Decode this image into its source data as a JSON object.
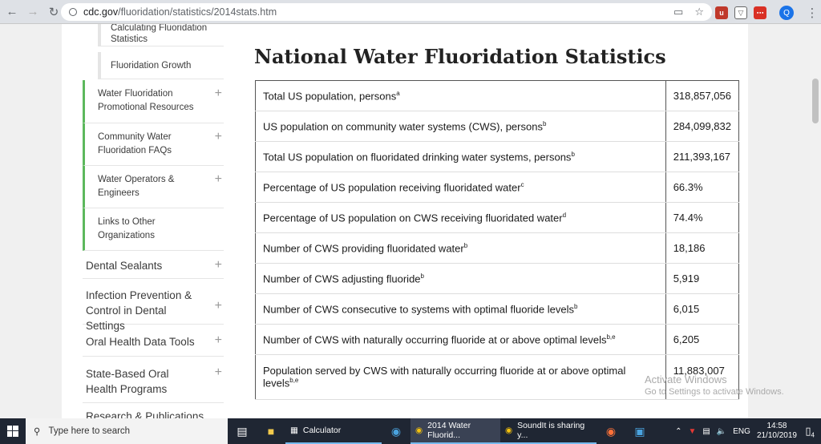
{
  "browser": {
    "url_domain": "cdc.gov",
    "url_path": "/fluoridation/statistics/2014stats.htm"
  },
  "sidebar": {
    "sub_items": [
      {
        "label": "Calculating Fluoridation Statistics"
      },
      {
        "label": "Fluoridation Growth"
      }
    ],
    "group_items": [
      {
        "label": "Water Fluoridation Promotional Resources"
      },
      {
        "label": "Community Water Fluoridation FAQs"
      },
      {
        "label": "Water Operators & Engineers"
      },
      {
        "label": "Links to Other Organizations"
      }
    ],
    "items": [
      {
        "label": "Dental Sealants"
      },
      {
        "label": "Infection Prevention & Control in Dental Settings"
      },
      {
        "label": "Oral Health Data Tools"
      },
      {
        "label": "State-Based Oral Health Programs"
      },
      {
        "label": "Research & Publications"
      }
    ]
  },
  "main": {
    "title": "National Water Fluoridation Statistics",
    "rows": [
      {
        "label": "Total US population, persons",
        "sup": "a",
        "value": "318,857,056"
      },
      {
        "label": "US population on community water systems (CWS), persons",
        "sup": "b",
        "value": "284,099,832"
      },
      {
        "label": "Total US population on fluoridated drinking water systems, persons",
        "sup": "b",
        "value": "211,393,167"
      },
      {
        "label": "Percentage of US population receiving fluoridated water",
        "sup": "c",
        "value": "66.3%"
      },
      {
        "label": "Percentage of US population on CWS receiving fluoridated water",
        "sup": "d",
        "value": "74.4%"
      },
      {
        "label": "Number of CWS providing fluoridated water",
        "sup": "b",
        "value": "18,186"
      },
      {
        "label": "Number of CWS adjusting fluoride",
        "sup": "b",
        "value": "5,919"
      },
      {
        "label": "Number of CWS consecutive to systems with optimal fluoride levels",
        "sup": "b",
        "value": "6,015"
      },
      {
        "label": "Number of CWS with naturally occurring fluoride at or above optimal levels",
        "sup": "b,e",
        "value": "6,205"
      },
      {
        "label": "Population served by CWS with naturally occurring fluoride at or above optimal levels",
        "sup": "b,e",
        "value": "11,883,007"
      }
    ]
  },
  "watermark": {
    "line1": "Activate Windows",
    "line2": "Go to Settings to activate Windows."
  },
  "taskbar": {
    "search_placeholder": "Type here to search",
    "apps": [
      {
        "label": "Calculator"
      },
      {
        "label": "2014 Water Fluorid..."
      },
      {
        "label": "SoundIt is sharing y..."
      }
    ],
    "lang": "ENG",
    "time": "14:58",
    "date": "21/10/2019",
    "notification_count": "4"
  },
  "profile_initial": "Q"
}
